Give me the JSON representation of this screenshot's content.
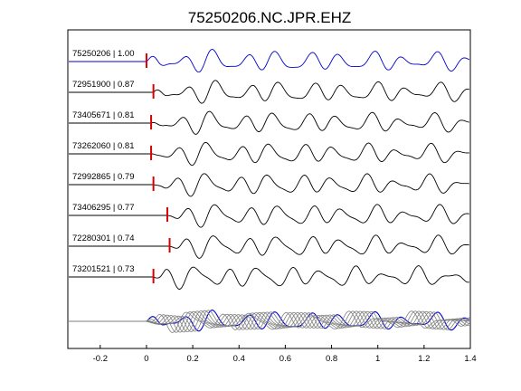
{
  "chart_data": {
    "type": "line",
    "title": "75250206.NC.JPR.EHZ",
    "xlabel": "",
    "ylabel": "",
    "xlim": [
      -0.34,
      1.4
    ],
    "xticks": [
      -0.2,
      0,
      0.2,
      0.4,
      0.6,
      0.8,
      1.0,
      1.2,
      1.4
    ],
    "xtick_labels": [
      "-0.2",
      "0",
      "0.2",
      "0.4",
      "0.6",
      "0.8",
      "1",
      "1.2",
      "1.4"
    ],
    "grid": false,
    "colors": {
      "reference": "#0000cc",
      "trace": "#000000",
      "pick": "#dd0000",
      "stack": "#808080"
    },
    "traces": [
      {
        "label": "75250206 | 1.00",
        "pick_time": 0.0,
        "reference": true
      },
      {
        "label": "72951900 | 0.87",
        "pick_time": 0.03
      },
      {
        "label": "73405671 | 0.81",
        "pick_time": 0.02
      },
      {
        "label": "73262060 | 0.81",
        "pick_time": 0.02
      },
      {
        "label": "72992865 | 0.79",
        "pick_time": 0.03
      },
      {
        "label": "73406295 | 0.77",
        "pick_time": 0.09
      },
      {
        "label": "72280301 | 0.74",
        "pick_time": 0.1
      },
      {
        "label": "73201521 | 0.73",
        "pick_time": 0.03
      }
    ],
    "overlay": {
      "type": "stack",
      "description_series_count": 8
    }
  }
}
